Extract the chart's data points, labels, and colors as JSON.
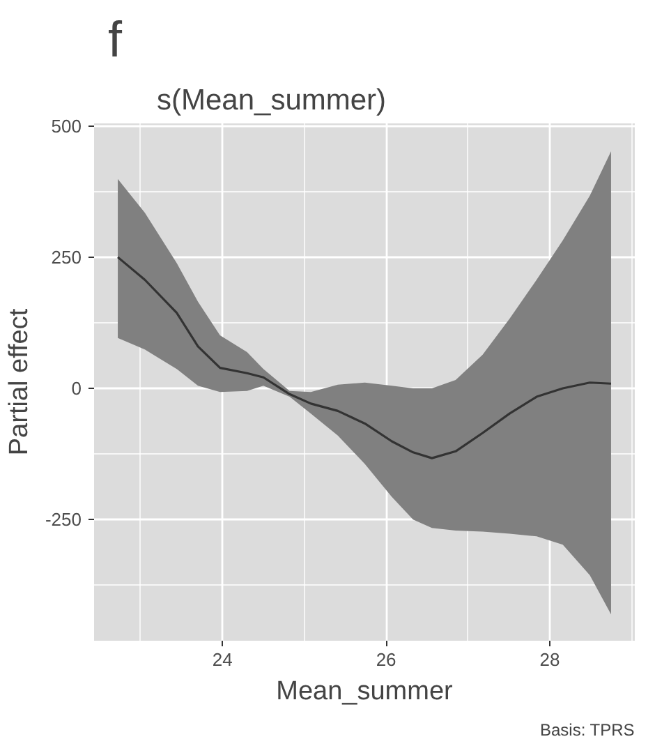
{
  "chart_data": {
    "type": "line",
    "title": "s(Mean_summer)",
    "xlabel": "Mean_summer",
    "ylabel": "Partial effect",
    "annotations": [
      "f",
      "Basis: TPRS"
    ],
    "x": [
      22.72,
      23.05,
      23.44,
      23.7,
      23.97,
      24.3,
      24.5,
      24.82,
      25.08,
      25.41,
      25.74,
      26.07,
      26.33,
      26.56,
      26.85,
      27.18,
      27.51,
      27.84,
      28.16,
      28.49,
      28.75
    ],
    "series": [
      {
        "color": "#333333",
        "values": [
          250,
          207,
          144,
          80,
          39,
          29,
          21,
          -11,
          -29,
          -43,
          -67,
          -101,
          -122,
          -133,
          -120,
          -85,
          -48,
          -16,
          0,
          11,
          9
        ],
        "upper": [
          399,
          335,
          239,
          165,
          101,
          69,
          37,
          -5,
          -7,
          7,
          11,
          5,
          0,
          0,
          16,
          64,
          133,
          207,
          282,
          367,
          452
        ],
        "lower": [
          96,
          74,
          37,
          5,
          -7,
          -5,
          5,
          -16,
          -48,
          -90,
          -144,
          -207,
          -250,
          -266,
          -271,
          -273,
          -277,
          -282,
          -298,
          -356,
          -431
        ]
      }
    ],
    "xlim": [
      22.43,
      29.04
    ],
    "ylim": [
      -481,
      505
    ],
    "xticks": [
      24,
      26,
      28
    ],
    "yticks": [
      -250,
      0,
      250,
      500
    ],
    "grid": true,
    "line_style": "solid"
  }
}
